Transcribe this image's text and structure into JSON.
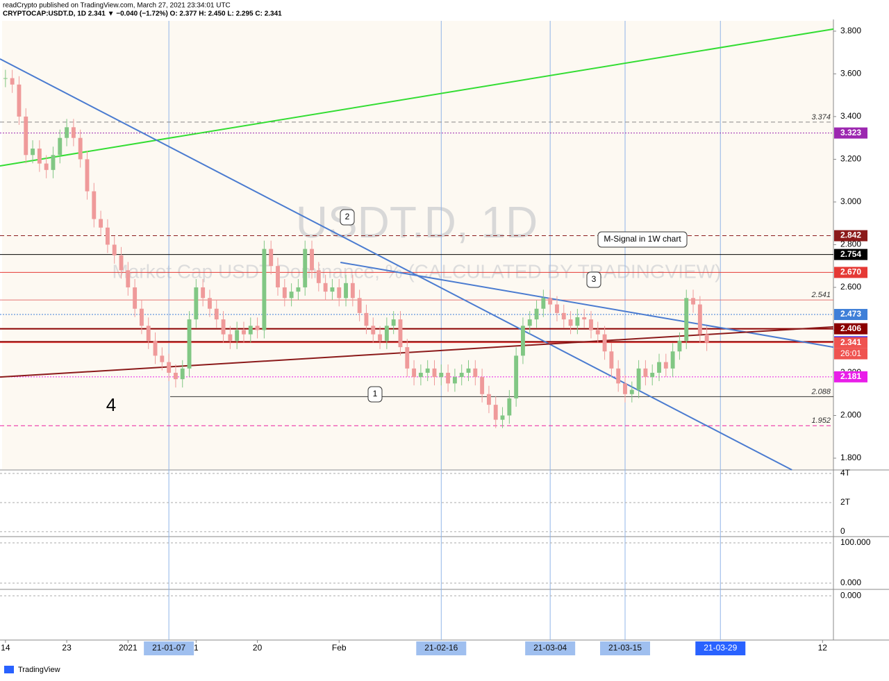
{
  "header": {
    "line1": "readCrypto published on TradingView.com, March 27, 2021 23:34:01 UTC",
    "line2": "CRYPTOCAP:USDT.D, 1D 2.341 ▼ −0.040 (−1.72%) O: 2.377 H: 2.450 L: 2.295 C: 2.341"
  },
  "footer": "TradingView",
  "chart_data": {
    "type": "candlestick",
    "watermark": "USDT.D, 1D",
    "subtitle": "Market Cap USDT Dominance, % (CALCULATED BY TRADINGVIEW)",
    "annotations": [
      "1",
      "2",
      "3",
      "M-Signal in 1W chart",
      "4"
    ],
    "up_color": "#81c784",
    "down_color": "#ef9a9a",
    "close": [
      3.58,
      3.55,
      3.4,
      3.22,
      3.25,
      3.18,
      3.15,
      3.22,
      3.3,
      3.35,
      3.3,
      3.2,
      3.05,
      2.92,
      2.88,
      2.8,
      2.75,
      2.68,
      2.6,
      2.5,
      2.42,
      2.35,
      2.28,
      2.25,
      2.2,
      2.17,
      2.22,
      2.45,
      2.6,
      2.55,
      2.5,
      2.45,
      2.38,
      2.35,
      2.4,
      2.38,
      2.42,
      2.4,
      2.78,
      2.7,
      2.6,
      2.55,
      2.58,
      2.6,
      2.78,
      2.68,
      2.62,
      2.58,
      2.6,
      2.55,
      2.62,
      2.55,
      2.48,
      2.42,
      2.38,
      2.35,
      2.42,
      2.45,
      2.32,
      2.22,
      2.18,
      2.2,
      2.22,
      2.18,
      2.2,
      2.15,
      2.18,
      2.2,
      2.22,
      2.18,
      2.1,
      2.05,
      1.98,
      2.0,
      2.08,
      2.28,
      2.42,
      2.45,
      2.5,
      2.55,
      2.52,
      2.48,
      2.45,
      2.42,
      2.46,
      2.45,
      2.4,
      2.38,
      2.3,
      2.22,
      2.15,
      2.1,
      2.12,
      2.22,
      2.18,
      2.2,
      2.25,
      2.22,
      2.3,
      2.35,
      2.55,
      2.52,
      2.38,
      2.341
    ],
    "xlim": [
      -0.8,
      121.6
    ],
    "xticks": [
      {
        "value": 0,
        "label": "14"
      },
      {
        "value": 9,
        "label": "23"
      },
      {
        "value": 18,
        "label": "2021"
      },
      {
        "value": 24,
        "label": "21-01-07",
        "highlight": true
      },
      {
        "value": 28,
        "label": "1"
      },
      {
        "value": 37,
        "label": "20"
      },
      {
        "value": 49,
        "label": "Feb"
      },
      {
        "value": 64,
        "label": "21-02-16",
        "highlight": true
      },
      {
        "value": 80,
        "label": "21-03-04",
        "highlight": true
      },
      {
        "value": 91,
        "label": "21-03-15",
        "highlight": true
      },
      {
        "value": 105,
        "label": "21-03-29",
        "highlight": true
      },
      {
        "value": 120,
        "label": "12"
      }
    ],
    "ylim": [
      1.748,
      3.946
    ],
    "yticks": [
      {
        "value": 1.8,
        "label": "1.800"
      },
      {
        "value": 2.0,
        "label": "2.000"
      },
      {
        "value": 2.2,
        "label": "2.200"
      },
      {
        "value": 2.4,
        "label": "2.400"
      },
      {
        "value": 2.6,
        "label": "2.600"
      },
      {
        "value": 2.8,
        "label": "2.800"
      },
      {
        "value": 3.0,
        "label": "3.000"
      },
      {
        "value": 3.2,
        "label": "3.200"
      },
      {
        "value": 3.4,
        "label": "3.400"
      },
      {
        "value": 3.6,
        "label": "3.600"
      },
      {
        "value": 3.8,
        "label": "3.800"
      }
    ],
    "levels": [
      {
        "value": 3.374,
        "color": "#888888",
        "style": "text"
      },
      {
        "value": 3.323,
        "color": "#9c27b0",
        "style": "box"
      },
      {
        "value": 2.842,
        "color": "#8b1a1a",
        "style": "box"
      },
      {
        "value": 2.754,
        "label": "2.754",
        "color": "#000000",
        "style": "box"
      },
      {
        "value": 2.67,
        "label": "2.670",
        "color": "#e53935",
        "style": "box"
      },
      {
        "value": 2.541,
        "color": "#e57373",
        "style": "text"
      },
      {
        "value": 2.473,
        "color": "#3f7fd8",
        "style": "box"
      },
      {
        "value": 2.406,
        "color": "#8b0000",
        "style": "box"
      },
      {
        "value": 2.345,
        "color": "#1a1aff",
        "style": "box"
      },
      {
        "value": 2.341,
        "color": "#ef5350",
        "style": "box"
      },
      {
        "value": 2.181,
        "color": "#e91ee9",
        "style": "box"
      },
      {
        "value": 2.088,
        "color": "#333333",
        "style": "text"
      },
      {
        "value": 1.952,
        "color": "#e91e9e",
        "style": "text"
      }
    ],
    "countdown": "26:01",
    "lines": [
      {
        "color": "#33dd33",
        "x": [
          -0.8,
          121.6
        ],
        "y": [
          3.169,
          3.81
        ]
      },
      {
        "color": "#4a7bd0",
        "x": [
          -0.8,
          115.5
        ],
        "y": [
          3.67,
          1.745
        ]
      },
      {
        "color": "#4a7bd0",
        "x": [
          49.2,
          121.6
        ],
        "y": [
          2.717,
          2.32
        ]
      },
      {
        "color": "#8b1a1a",
        "x": [
          -0.8,
          121.6
        ],
        "y": [
          2.18,
          2.415
        ]
      }
    ],
    "panes": [
      {
        "ylim": [
          -0.29,
          4.19
        ],
        "yticks": [
          {
            "value": 4,
            "label": "4T"
          },
          {
            "value": 2,
            "label": "2T"
          },
          0
        ]
      },
      {
        "ylim": [
          -13.8,
          113.8
        ],
        "yticks": [
          {
            "value": 100,
            "label": "100.000"
          },
          {
            "value": 0,
            "label": "0.000"
          }
        ]
      },
      {
        "ylim": [
          -0.09,
          0.012
        ],
        "yticks": [
          {
            "value": 0,
            "label": "0.000"
          }
        ]
      }
    ]
  }
}
